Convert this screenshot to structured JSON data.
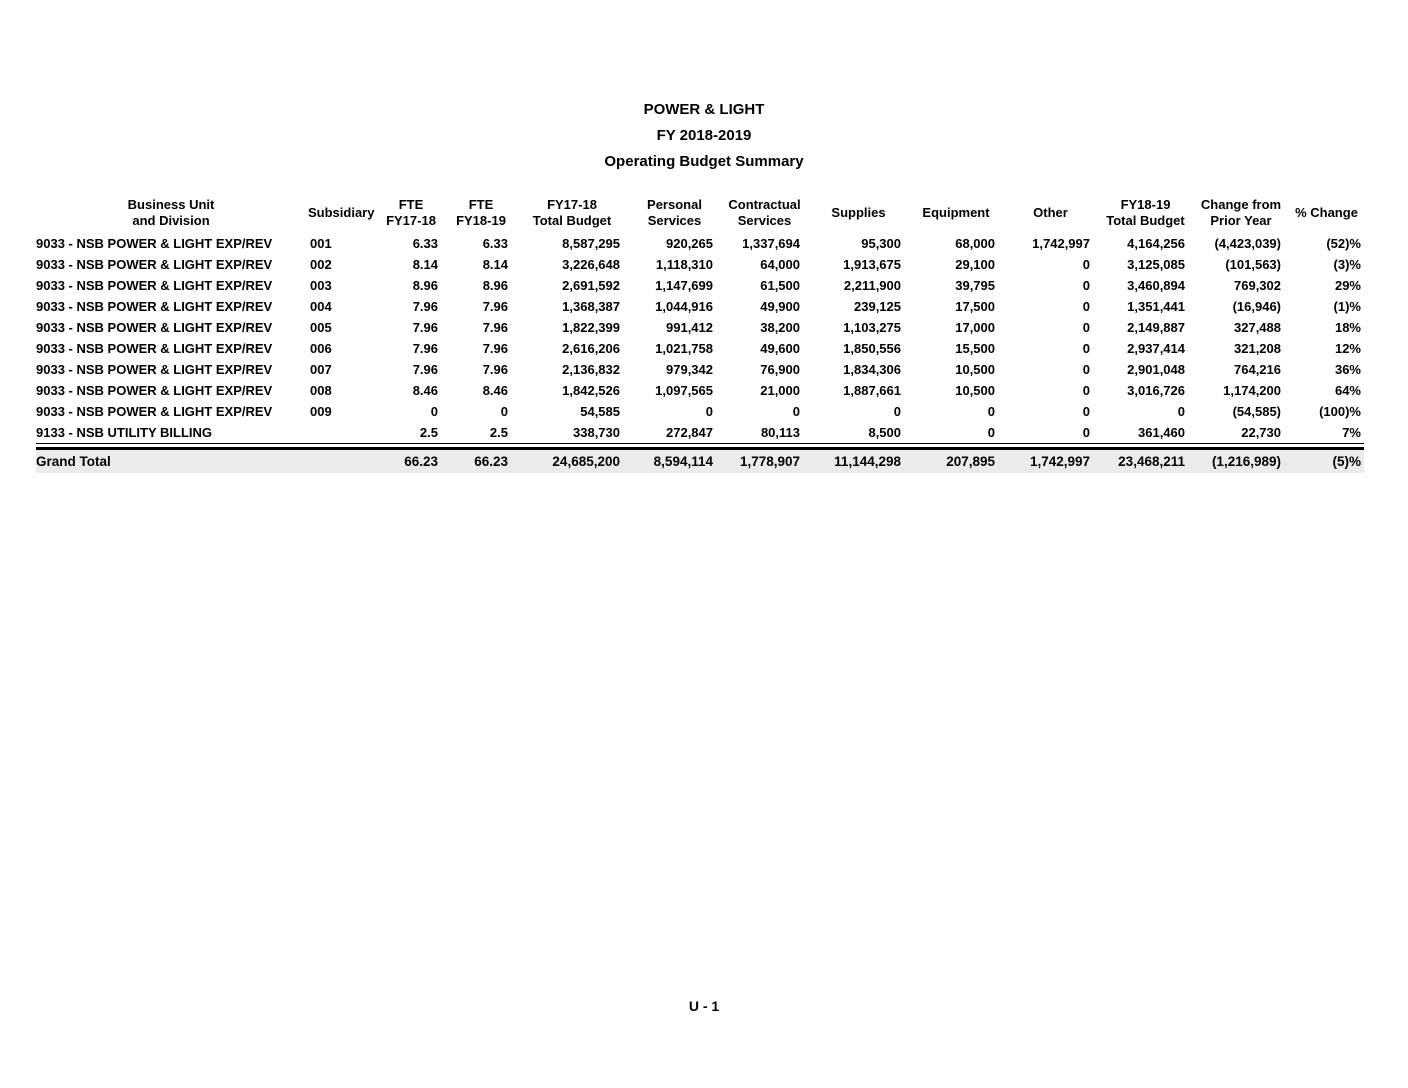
{
  "document": {
    "title_lines": {
      "0": "POWER & LIGHT",
      "1": "FY 2018-2019",
      "2": "Operating Budget Summary"
    },
    "footer": "U - 1"
  },
  "colors": {
    "text": "#000000",
    "grand_total_bg": "#ebebeb",
    "page_bg": "#ffffff"
  },
  "table": {
    "columns": [
      {
        "id": "business-unit",
        "lines": [
          "Business Unit",
          "and Division"
        ],
        "align": "left"
      },
      {
        "id": "subsidiary",
        "lines": [
          "Subsidiary"
        ],
        "align": "left"
      },
      {
        "id": "fte-fy17-18",
        "lines": [
          "FTE",
          "FY17-18"
        ],
        "align": "right"
      },
      {
        "id": "fte-fy18-19",
        "lines": [
          "FTE",
          "FY18-19"
        ],
        "align": "right"
      },
      {
        "id": "fy17-18-total-budget",
        "lines": [
          "FY17-18",
          "Total Budget"
        ],
        "align": "right"
      },
      {
        "id": "personal-services",
        "lines": [
          "Personal",
          "Services"
        ],
        "align": "right"
      },
      {
        "id": "contractual-services",
        "lines": [
          "Contractual",
          "Services"
        ],
        "align": "right"
      },
      {
        "id": "supplies",
        "lines": [
          "Supplies"
        ],
        "align": "right"
      },
      {
        "id": "equipment",
        "lines": [
          "Equipment"
        ],
        "align": "right"
      },
      {
        "id": "other",
        "lines": [
          "Other"
        ],
        "align": "right"
      },
      {
        "id": "fy18-19-total-budget",
        "lines": [
          "FY18-19",
          "Total Budget"
        ],
        "align": "right"
      },
      {
        "id": "change-from-prior-year",
        "lines": [
          "Change from",
          "Prior Year"
        ],
        "align": "right"
      },
      {
        "id": "pct-change",
        "lines": [
          "% Change"
        ],
        "align": "right"
      }
    ],
    "rows": [
      [
        "9033 - NSB POWER & LIGHT EXP/REV",
        "001",
        "6.33",
        "6.33",
        "8,587,295",
        "920,265",
        "1,337,694",
        "95,300",
        "68,000",
        "1,742,997",
        "4,164,256",
        "(4,423,039)",
        "(52)%"
      ],
      [
        "9033 - NSB POWER & LIGHT EXP/REV",
        "002",
        "8.14",
        "8.14",
        "3,226,648",
        "1,118,310",
        "64,000",
        "1,913,675",
        "29,100",
        "0",
        "3,125,085",
        "(101,563)",
        "(3)%"
      ],
      [
        "9033 - NSB POWER & LIGHT EXP/REV",
        "003",
        "8.96",
        "8.96",
        "2,691,592",
        "1,147,699",
        "61,500",
        "2,211,900",
        "39,795",
        "0",
        "3,460,894",
        "769,302",
        "29%"
      ],
      [
        "9033 - NSB POWER & LIGHT EXP/REV",
        "004",
        "7.96",
        "7.96",
        "1,368,387",
        "1,044,916",
        "49,900",
        "239,125",
        "17,500",
        "0",
        "1,351,441",
        "(16,946)",
        "(1)%"
      ],
      [
        "9033 - NSB POWER & LIGHT EXP/REV",
        "005",
        "7.96",
        "7.96",
        "1,822,399",
        "991,412",
        "38,200",
        "1,103,275",
        "17,000",
        "0",
        "2,149,887",
        "327,488",
        "18%"
      ],
      [
        "9033 - NSB POWER & LIGHT EXP/REV",
        "006",
        "7.96",
        "7.96",
        "2,616,206",
        "1,021,758",
        "49,600",
        "1,850,556",
        "15,500",
        "0",
        "2,937,414",
        "321,208",
        "12%"
      ],
      [
        "9033 - NSB POWER & LIGHT EXP/REV",
        "007",
        "7.96",
        "7.96",
        "2,136,832",
        "979,342",
        "76,900",
        "1,834,306",
        "10,500",
        "0",
        "2,901,048",
        "764,216",
        "36%"
      ],
      [
        "9033 - NSB POWER & LIGHT EXP/REV",
        "008",
        "8.46",
        "8.46",
        "1,842,526",
        "1,097,565",
        "21,000",
        "1,887,661",
        "10,500",
        "0",
        "3,016,726",
        "1,174,200",
        "64%"
      ],
      [
        "9033 - NSB POWER & LIGHT EXP/REV",
        "009",
        "0",
        "0",
        "54,585",
        "0",
        "0",
        "0",
        "0",
        "0",
        "0",
        "(54,585)",
        "(100)%"
      ],
      [
        "9133 - NSB UTILITY BILLING",
        "",
        "2.5",
        "2.5",
        "338,730",
        "272,847",
        "80,113",
        "8,500",
        "0",
        "0",
        "361,460",
        "22,730",
        "7%"
      ]
    ],
    "grand_total": [
      "Grand Total",
      "",
      "66.23",
      "66.23",
      "24,685,200",
      "8,594,114",
      "1,778,907",
      "11,144,298",
      "207,895",
      "1,742,997",
      "23,468,211",
      "(1,216,989)",
      "(5)%"
    ]
  }
}
